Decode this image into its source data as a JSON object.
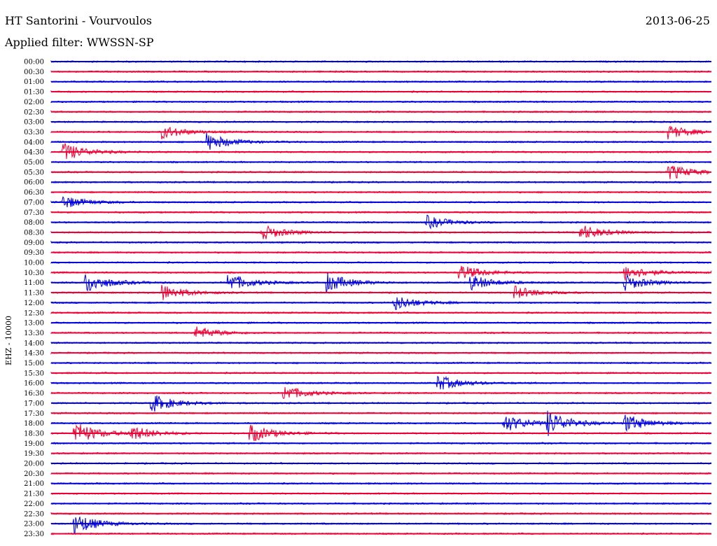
{
  "header": {
    "station": "HT Santorini - Vourvoulos",
    "date": "2013-06-25",
    "filter": "Applied filter: WWSSN-SP"
  },
  "chart_data": {
    "type": "line",
    "title": "HT Santorini - Vourvoulos",
    "subtitle": "Applied filter: WWSSN-SP",
    "ylabel": "EHZ - 10000",
    "xlabel": "",
    "colors": [
      "#0000dd",
      "#ee0033"
    ],
    "rows": [
      "00:00",
      "00:30",
      "01:00",
      "01:30",
      "02:00",
      "02:30",
      "03:00",
      "03:30",
      "04:00",
      "04:30",
      "05:00",
      "05:30",
      "06:00",
      "06:30",
      "07:00",
      "07:30",
      "08:00",
      "08:30",
      "09:00",
      "09:30",
      "10:00",
      "10:30",
      "11:00",
      "11:30",
      "12:00",
      "12:30",
      "13:00",
      "13:30",
      "14:00",
      "14:30",
      "15:00",
      "15:30",
      "16:00",
      "16:30",
      "17:00",
      "17:30",
      "18:00",
      "18:30",
      "19:00",
      "19:30",
      "20:00",
      "20:30",
      "21:00",
      "21:30",
      "22:00",
      "22:30",
      "23:00",
      "23:30"
    ],
    "events": [
      {
        "row": "03:30",
        "minute": 5.0,
        "amplitude": 10
      },
      {
        "row": "03:30",
        "minute": 28.0,
        "amplitude": 10
      },
      {
        "row": "04:00",
        "minute": 7.0,
        "amplitude": 14
      },
      {
        "row": "04:30",
        "minute": 0.5,
        "amplitude": 14
      },
      {
        "row": "05:30",
        "minute": 28.0,
        "amplitude": 12
      },
      {
        "row": "07:00",
        "minute": 0.5,
        "amplitude": 10
      },
      {
        "row": "08:00",
        "minute": 17.0,
        "amplitude": 10
      },
      {
        "row": "08:30",
        "minute": 9.5,
        "amplitude": 12
      },
      {
        "row": "08:30",
        "minute": 24.0,
        "amplitude": 12
      },
      {
        "row": "10:30",
        "minute": 18.5,
        "amplitude": 12
      },
      {
        "row": "10:30",
        "minute": 26.0,
        "amplitude": 12
      },
      {
        "row": "10:30",
        "minute": 30.0,
        "amplitude": 14
      },
      {
        "row": "11:00",
        "minute": 1.5,
        "amplitude": 16
      },
      {
        "row": "11:00",
        "minute": 8.0,
        "amplitude": 14
      },
      {
        "row": "11:00",
        "minute": 12.5,
        "amplitude": 14
      },
      {
        "row": "11:00",
        "minute": 19.0,
        "amplitude": 12
      },
      {
        "row": "11:00",
        "minute": 26.0,
        "amplitude": 12
      },
      {
        "row": "11:30",
        "minute": 5.0,
        "amplitude": 12
      },
      {
        "row": "11:30",
        "minute": 21.0,
        "amplitude": 10
      },
      {
        "row": "12:00",
        "minute": 15.5,
        "amplitude": 12
      },
      {
        "row": "13:30",
        "minute": 6.5,
        "amplitude": 10
      },
      {
        "row": "16:00",
        "minute": 17.5,
        "amplitude": 12
      },
      {
        "row": "16:30",
        "minute": 10.5,
        "amplitude": 12
      },
      {
        "row": "17:00",
        "minute": 4.5,
        "amplitude": 14
      },
      {
        "row": "18:00",
        "minute": 20.5,
        "amplitude": 14
      },
      {
        "row": "18:00",
        "minute": 22.5,
        "amplitude": 18
      },
      {
        "row": "18:00",
        "minute": 26.0,
        "amplitude": 14
      },
      {
        "row": "18:30",
        "minute": 1.0,
        "amplitude": 18
      },
      {
        "row": "18:30",
        "minute": 3.5,
        "amplitude": 12
      },
      {
        "row": "18:30",
        "minute": 9.0,
        "amplitude": 14
      },
      {
        "row": "23:00",
        "minute": 1.0,
        "amplitude": 16
      }
    ]
  }
}
